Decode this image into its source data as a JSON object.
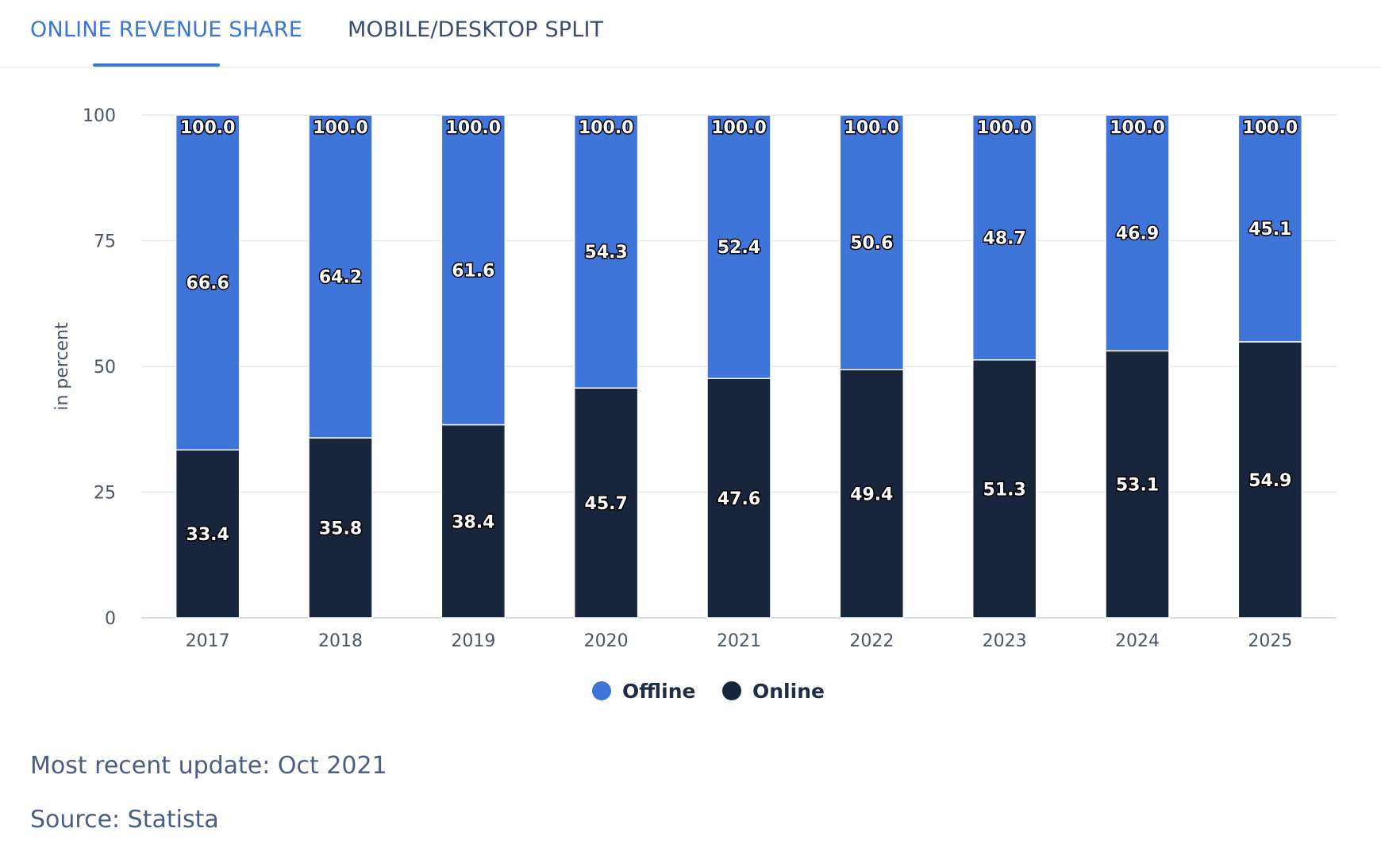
{
  "tabs": [
    {
      "label": "ONLINE REVENUE SHARE",
      "active": true
    },
    {
      "label": "MOBILE/DESKTOP SPLIT",
      "active": false
    }
  ],
  "chart_data": {
    "type": "bar",
    "stacked": true,
    "ylabel": "in percent",
    "ylim": [
      0,
      100
    ],
    "yticks": [
      0,
      25,
      50,
      75,
      100
    ],
    "grid": true,
    "legend_position": "bottom",
    "categories": [
      "2017",
      "2018",
      "2019",
      "2020",
      "2021",
      "2022",
      "2023",
      "2024",
      "2025"
    ],
    "series": [
      {
        "name": "Online",
        "color": "#17253d",
        "values": [
          33.4,
          35.8,
          38.4,
          45.7,
          47.6,
          49.4,
          51.3,
          53.1,
          54.9
        ]
      },
      {
        "name": "Offline",
        "color": "#3f74d9",
        "values": [
          66.6,
          64.2,
          61.6,
          54.3,
          52.4,
          50.6,
          48.7,
          46.9,
          45.1
        ]
      }
    ],
    "totals": [
      100.0,
      100.0,
      100.0,
      100.0,
      100.0,
      100.0,
      100.0,
      100.0,
      100.0
    ],
    "legend": [
      {
        "name": "Offline",
        "color": "#3f74d9"
      },
      {
        "name": "Online",
        "color": "#17253d"
      }
    ]
  },
  "footer": {
    "update": "Most recent update: Oct 2021",
    "source": "Source: Statista"
  }
}
